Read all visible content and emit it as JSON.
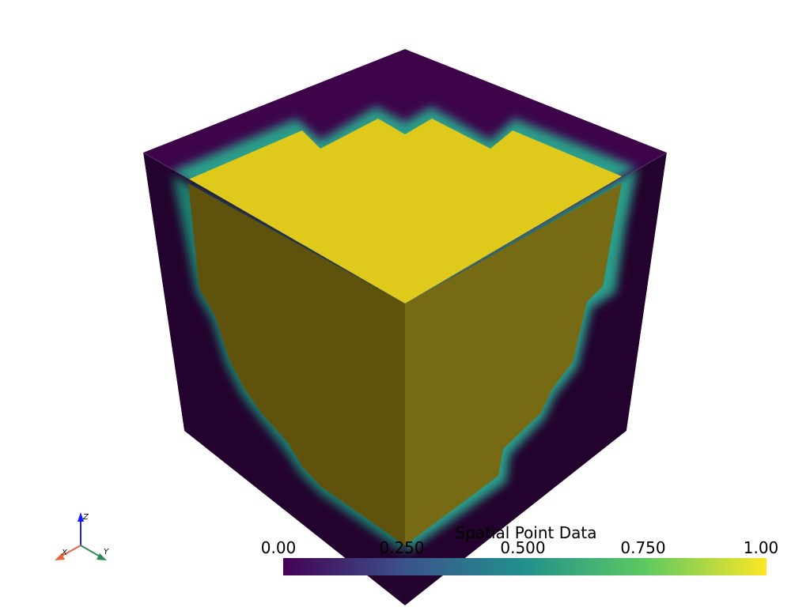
{
  "scalar_bar": {
    "title": "Spatial Point Data",
    "ticks": [
      "0.00",
      "0.250",
      "0.500",
      "0.750",
      "1.00"
    ],
    "range": [
      0,
      1
    ],
    "colormap": "viridis",
    "colors": [
      "#440154",
      "#3b528b",
      "#21918c",
      "#5ec962",
      "#fde725"
    ]
  },
  "orientation_axes": {
    "x_label": "X",
    "y_label": "Y",
    "z_label": "Z",
    "x_color": "#e8643c",
    "y_color": "#2e8b57",
    "z_color": "#1a1aff"
  },
  "scene": {
    "object": "cube",
    "outer_color": "#3a0448",
    "inner_color": "#dfca1c"
  }
}
